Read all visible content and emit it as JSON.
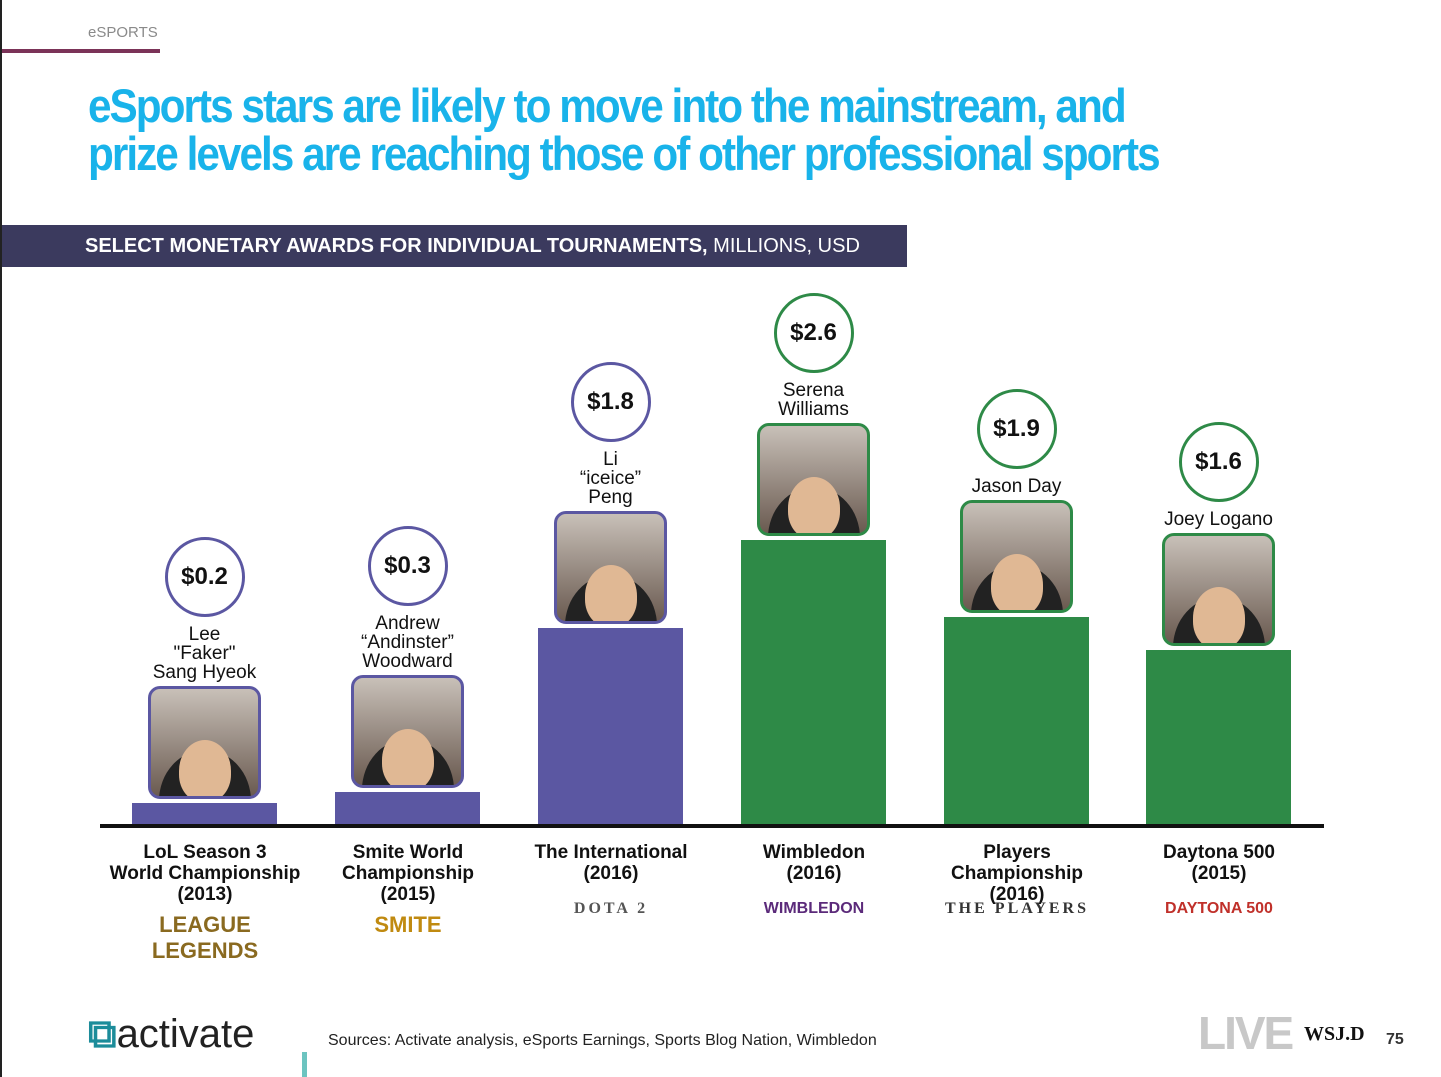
{
  "section": "eSPORTS",
  "title": "eSports stars are likely to move into the mainstream, and prize levels are reaching those of other professional sports",
  "band": {
    "bold": "SELECT MONETARY AWARDS FOR INDIVIDUAL TOURNAMENTS,",
    "normal": " MILLIONS, USD"
  },
  "colors": {
    "esports": "#5b57a2",
    "other": "#2e8a47",
    "title": "#19b3ea"
  },
  "chart_data": {
    "type": "bar",
    "title": "Select monetary awards for individual tournaments",
    "ylabel": "Millions, USD",
    "ylim": [
      0,
      2.6
    ],
    "categories": [
      "LoL Season 3\nWorld Championship\n(2013)",
      "Smite World\nChampionship\n(2015)",
      "The International\n(2016)",
      "Wimbledon\n(2016)",
      "Players Championship\n(2016)",
      "Daytona 500\n(2015)"
    ],
    "values": [
      0.2,
      0.3,
      1.8,
      2.6,
      1.9,
      1.6
    ],
    "value_labels": [
      "$0.2",
      "$0.3",
      "$1.8",
      "$2.6",
      "$1.9",
      "$1.6"
    ],
    "players": [
      "Lee\n\"Faker\"\nSang Hyeok",
      "Andrew\n“Andinster”\nWoodward",
      "Li\n“iceice”\nPeng",
      "Serena\nWilliams",
      "Jason Day",
      "Joey Logano"
    ],
    "groups": [
      "esports",
      "esports",
      "esports",
      "other",
      "other",
      "other"
    ],
    "logos": [
      "LEAGUE LEGENDS",
      "SMITE",
      "DOTA 2",
      "WIMBLEDON",
      "THE PLAYERS",
      "DAYTONA 500"
    ]
  },
  "footer": {
    "brand": "activate",
    "sources": "Sources: Activate analysis, eSports Earnings, Sports Blog Nation, Wimbledon",
    "live": "LIVE",
    "wsj": "WSJ.D",
    "page": "75"
  }
}
